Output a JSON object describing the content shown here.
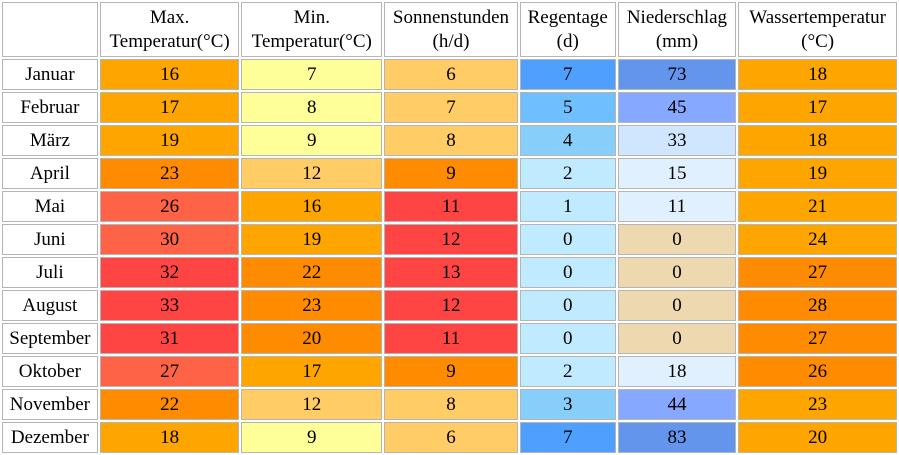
{
  "headers": [
    {
      "line1": "Max.",
      "line2": "Temperatur(°C)"
    },
    {
      "line1": "Min.",
      "line2": "Temperatur(°C)"
    },
    {
      "line1": "Sonnenstunden",
      "line2": "(h/d)"
    },
    {
      "line1": "Regentage",
      "line2": "(d)"
    },
    {
      "line1": "Niederschlag",
      "line2": "(mm)"
    },
    {
      "line1": "Wassertemperatur",
      "line2": "(°C)"
    }
  ],
  "rows": [
    {
      "month": "Januar",
      "max": "16",
      "min": "7",
      "sun": "6",
      "rain_days": "7",
      "precip": "73",
      "water": "18"
    },
    {
      "month": "Februar",
      "max": "17",
      "min": "8",
      "sun": "7",
      "rain_days": "5",
      "precip": "45",
      "water": "17"
    },
    {
      "month": "März",
      "max": "19",
      "min": "9",
      "sun": "8",
      "rain_days": "4",
      "precip": "33",
      "water": "18"
    },
    {
      "month": "April",
      "max": "23",
      "min": "12",
      "sun": "9",
      "rain_days": "2",
      "precip": "15",
      "water": "19"
    },
    {
      "month": "Mai",
      "max": "26",
      "min": "16",
      "sun": "11",
      "rain_days": "1",
      "precip": "11",
      "water": "21"
    },
    {
      "month": "Juni",
      "max": "30",
      "min": "19",
      "sun": "12",
      "rain_days": "0",
      "precip": "0",
      "water": "24"
    },
    {
      "month": "Juli",
      "max": "32",
      "min": "22",
      "sun": "13",
      "rain_days": "0",
      "precip": "0",
      "water": "27"
    },
    {
      "month": "August",
      "max": "33",
      "min": "23",
      "sun": "12",
      "rain_days": "0",
      "precip": "0",
      "water": "28"
    },
    {
      "month": "September",
      "max": "31",
      "min": "20",
      "sun": "11",
      "rain_days": "0",
      "precip": "0",
      "water": "27"
    },
    {
      "month": "Oktober",
      "max": "27",
      "min": "17",
      "sun": "9",
      "rain_days": "2",
      "precip": "18",
      "water": "26"
    },
    {
      "month": "November",
      "max": "22",
      "min": "12",
      "sun": "8",
      "rain_days": "3",
      "precip": "44",
      "water": "23"
    },
    {
      "month": "Dezember",
      "max": "18",
      "min": "9",
      "sun": "6",
      "rain_days": "7",
      "precip": "83",
      "water": "20"
    }
  ],
  "colors": {
    "max": [
      "#ffa500",
      "#ffa500",
      "#ffa500",
      "#ff8c00",
      "#ff6347",
      "#ff6347",
      "#ff4444",
      "#ff4444",
      "#ff4444",
      "#ff6347",
      "#ff8c00",
      "#ffa500"
    ],
    "min": [
      "#ffff99",
      "#ffff99",
      "#ffff99",
      "#ffcc66",
      "#ffa500",
      "#ffa500",
      "#ff8c00",
      "#ff8c00",
      "#ff8c00",
      "#ffa500",
      "#ffcc66",
      "#ffff99"
    ],
    "sun": [
      "#ffcc66",
      "#ffcc66",
      "#ffcc66",
      "#ff8c00",
      "#ff4444",
      "#ff4444",
      "#ff4444",
      "#ff4444",
      "#ff4444",
      "#ff8c00",
      "#ffcc66",
      "#ffcc66"
    ],
    "rain_days": [
      "#4f9fff",
      "#6fbfff",
      "#87cefa",
      "#bfeaff",
      "#bfeaff",
      "#bfeaff",
      "#bfeaff",
      "#bfeaff",
      "#bfeaff",
      "#bfeaff",
      "#87cefa",
      "#4f9fff"
    ],
    "precip": [
      "#6495ed",
      "#87a8ff",
      "#d0e6ff",
      "#e0f0ff",
      "#e0f0ff",
      "#eed8b0",
      "#eed8b0",
      "#eed8b0",
      "#eed8b0",
      "#e0f0ff",
      "#87a8ff",
      "#6495ed"
    ],
    "water": [
      "#ffa500",
      "#ffa500",
      "#ffa500",
      "#ffa500",
      "#ffa500",
      "#ffa500",
      "#ff8c00",
      "#ff8c00",
      "#ff8c00",
      "#ff8c00",
      "#ffa500",
      "#ffa500"
    ]
  }
}
